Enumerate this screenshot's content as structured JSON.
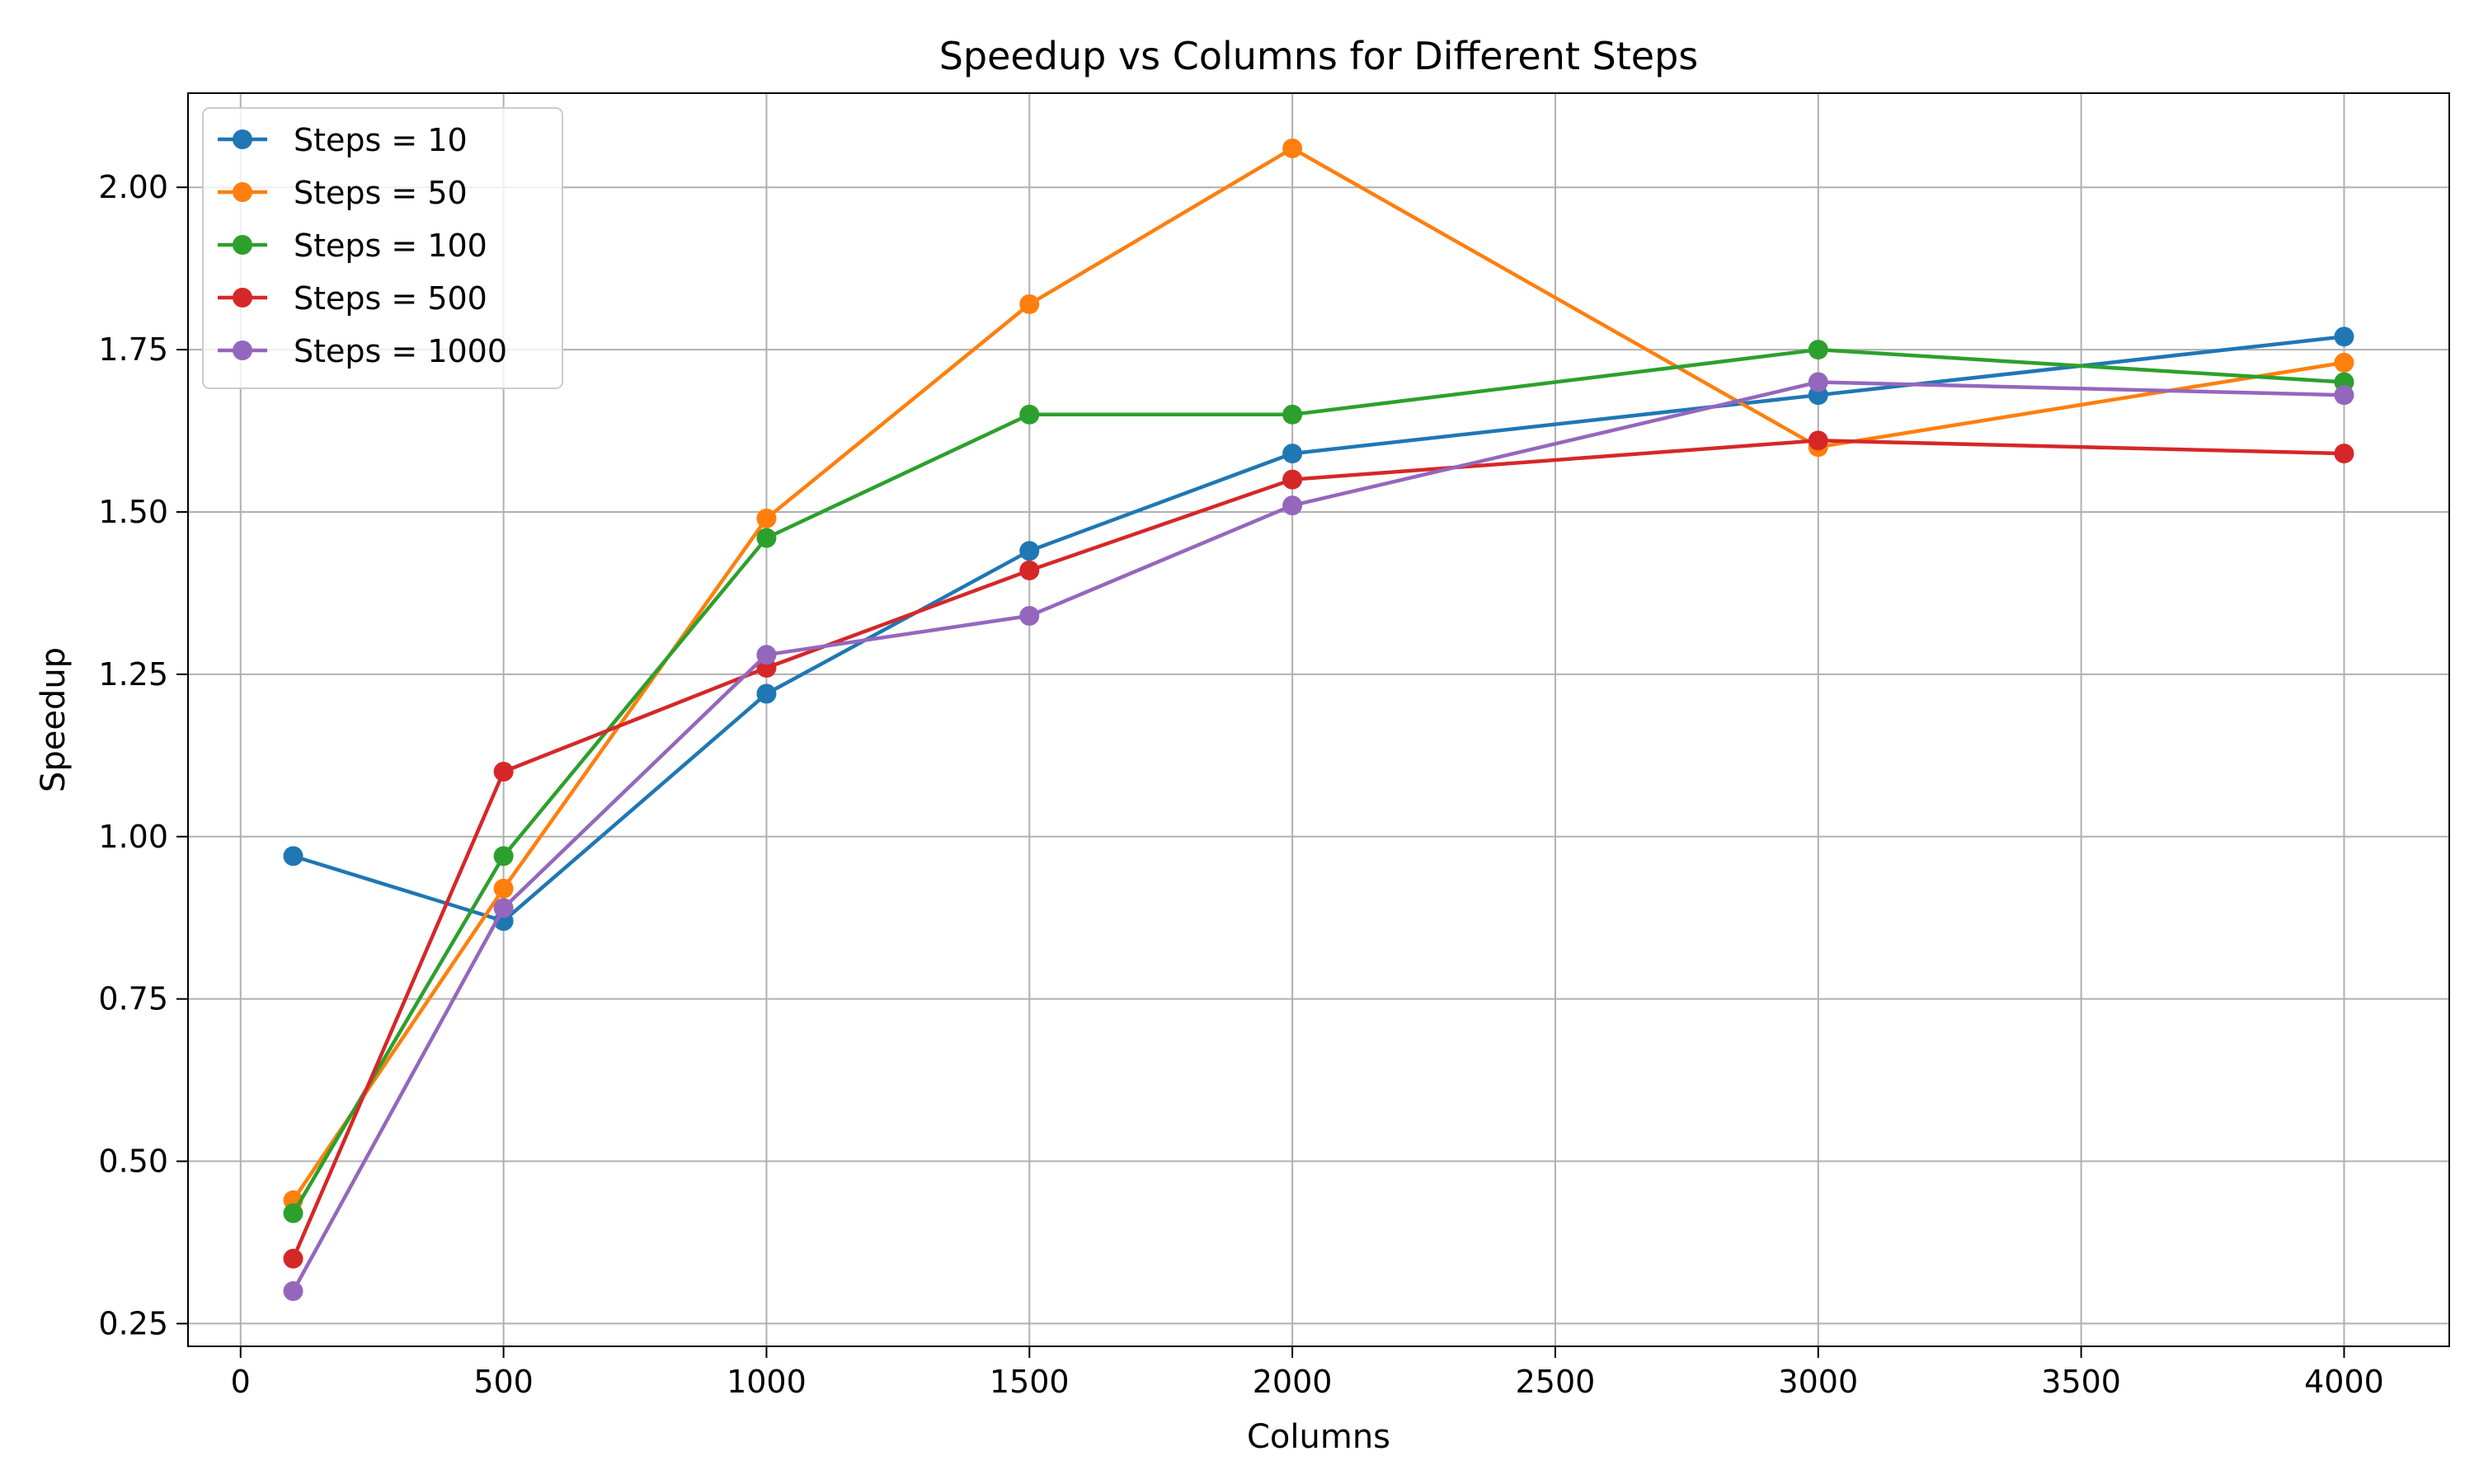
{
  "chart_data": {
    "type": "line",
    "title": "Speedup vs Columns for Different Steps",
    "xlabel": "Columns",
    "ylabel": "Speedup",
    "xlim": [
      -100,
      4200
    ],
    "ylim": [
      0.215,
      2.145
    ],
    "xticks": [
      0,
      500,
      1000,
      1500,
      2000,
      2500,
      3000,
      3500,
      4000
    ],
    "xtick_labels": [
      "0",
      "500",
      "1000",
      "1500",
      "2000",
      "2500",
      "3000",
      "3500",
      "4000"
    ],
    "yticks": [
      0.25,
      0.5,
      0.75,
      1.0,
      1.25,
      1.5,
      1.75,
      2.0
    ],
    "ytick_labels": [
      "0.25",
      "0.50",
      "0.75",
      "1.00",
      "1.25",
      "1.50",
      "1.75",
      "2.00"
    ],
    "grid": true,
    "legend_position": "top-left",
    "x": [
      100,
      500,
      1000,
      1500,
      2000,
      3000,
      4000
    ],
    "series": [
      {
        "name": "Steps = 10",
        "color": "#1f77b4",
        "values": [
          0.97,
          0.87,
          1.22,
          1.44,
          1.59,
          1.68,
          1.77
        ]
      },
      {
        "name": "Steps = 50",
        "color": "#ff7f0e",
        "values": [
          0.44,
          0.92,
          1.49,
          1.82,
          2.06,
          1.6,
          1.73
        ]
      },
      {
        "name": "Steps = 100",
        "color": "#2ca02c",
        "values": [
          0.42,
          0.97,
          1.46,
          1.65,
          1.65,
          1.75,
          1.7
        ]
      },
      {
        "name": "Steps = 500",
        "color": "#d62728",
        "values": [
          0.35,
          1.1,
          1.26,
          1.41,
          1.55,
          1.61,
          1.59
        ]
      },
      {
        "name": "Steps = 1000",
        "color": "#9467bd",
        "values": [
          0.3,
          0.89,
          1.28,
          1.34,
          1.51,
          1.7,
          1.68
        ]
      }
    ]
  }
}
